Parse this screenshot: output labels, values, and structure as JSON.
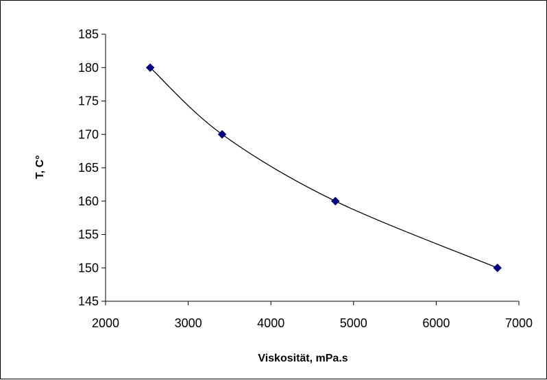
{
  "chart_data": {
    "type": "scatter",
    "title": "",
    "xlabel": "Viskosität, mPa.s",
    "ylabel": "T, C°",
    "xlim": [
      2000,
      7000
    ],
    "ylim": [
      145,
      185
    ],
    "xticks": [
      2000,
      3000,
      4000,
      5000,
      6000,
      7000
    ],
    "yticks": [
      145,
      150,
      155,
      160,
      165,
      170,
      175,
      180,
      185
    ],
    "grid": false,
    "legend": "none",
    "trendline": "smooth curve through points",
    "marker": "diamond",
    "colors": {
      "marker": "#000080",
      "line": "#000000",
      "axis": "#000000"
    },
    "series": [
      {
        "x": [
          2540,
          3410,
          4780,
          6740
        ],
        "y": [
          180,
          170,
          160,
          150
        ]
      }
    ]
  }
}
